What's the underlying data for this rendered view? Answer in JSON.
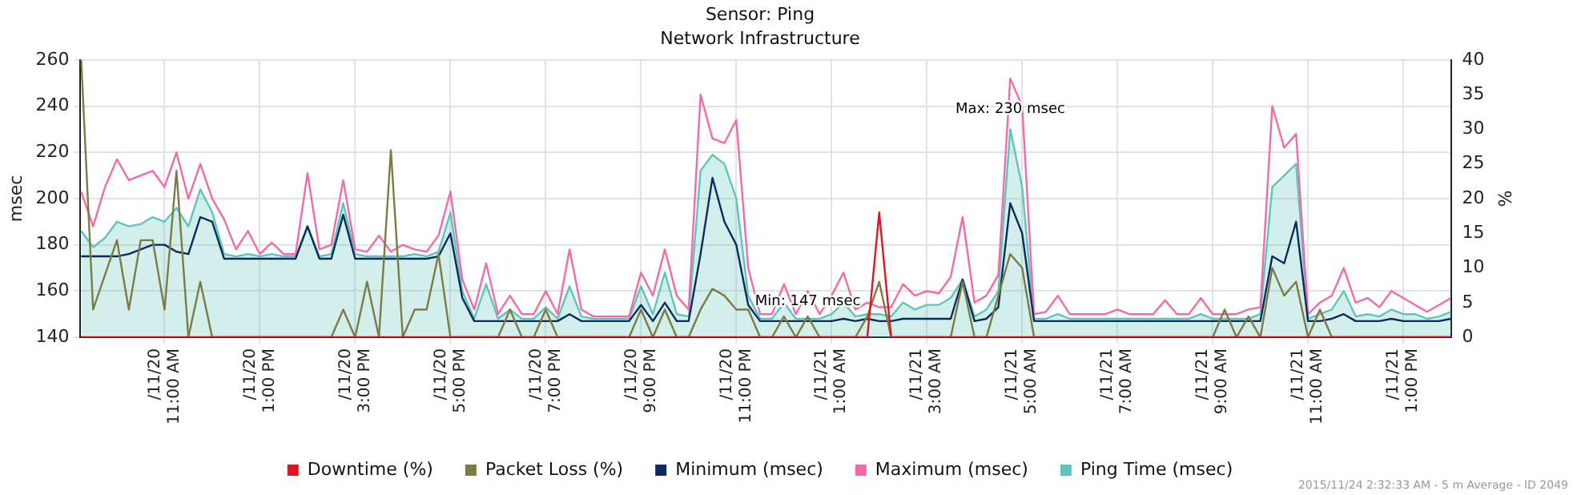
{
  "chart_data": {
    "type": "line",
    "title": "Sensor: Ping",
    "subtitle": "Network Infrastructure",
    "ylabel": "msec",
    "y2label": "%",
    "x": [
      "2015-11-20T09:15",
      "2015-11-20T09:30",
      "2015-11-20T09:45",
      "2015-11-20T10:00",
      "2015-11-20T10:15",
      "2015-11-20T10:30",
      "2015-11-20T10:45",
      "2015-11-20T11:00",
      "2015-11-20T11:15",
      "2015-11-20T11:30",
      "2015-11-20T11:45",
      "2015-11-20T12:00",
      "2015-11-20T12:15",
      "2015-11-20T12:30",
      "2015-11-20T12:45",
      "2015-11-20T13:00",
      "2015-11-20T13:15",
      "2015-11-20T13:30",
      "2015-11-20T13:45",
      "2015-11-20T14:00",
      "2015-11-20T14:15",
      "2015-11-20T14:30",
      "2015-11-20T14:45",
      "2015-11-20T15:00",
      "2015-11-20T15:15",
      "2015-11-20T15:30",
      "2015-11-20T15:45",
      "2015-11-20T16:00",
      "2015-11-20T16:15",
      "2015-11-20T16:30",
      "2015-11-20T16:45",
      "2015-11-20T17:00",
      "2015-11-20T17:15",
      "2015-11-20T17:30",
      "2015-11-20T17:45",
      "2015-11-20T18:00",
      "2015-11-20T18:15",
      "2015-11-20T18:30",
      "2015-11-20T18:45",
      "2015-11-20T19:00",
      "2015-11-20T19:15",
      "2015-11-20T19:30",
      "2015-11-20T19:45",
      "2015-11-20T20:00",
      "2015-11-20T20:15",
      "2015-11-20T20:30",
      "2015-11-20T20:45",
      "2015-11-20T21:00",
      "2015-11-20T21:15",
      "2015-11-20T21:30",
      "2015-11-20T21:45",
      "2015-11-20T22:00",
      "2015-11-20T22:15",
      "2015-11-20T22:30",
      "2015-11-20T22:45",
      "2015-11-20T23:00",
      "2015-11-20T23:15",
      "2015-11-20T23:30",
      "2015-11-20T23:45",
      "2015-11-21T00:00",
      "2015-11-21T00:15",
      "2015-11-21T00:30",
      "2015-11-21T00:45",
      "2015-11-21T01:00",
      "2015-11-21T01:15",
      "2015-11-21T01:30",
      "2015-11-21T01:45",
      "2015-11-21T02:00",
      "2015-11-21T02:15",
      "2015-11-21T02:30",
      "2015-11-21T02:45",
      "2015-11-21T03:00",
      "2015-11-21T03:15",
      "2015-11-21T03:30",
      "2015-11-21T03:45",
      "2015-11-21T04:00",
      "2015-11-21T04:15",
      "2015-11-21T04:30",
      "2015-11-21T04:45",
      "2015-11-21T05:00",
      "2015-11-21T05:15",
      "2015-11-21T05:30",
      "2015-11-21T05:45",
      "2015-11-21T06:00",
      "2015-11-21T06:15",
      "2015-11-21T06:30",
      "2015-11-21T06:45",
      "2015-11-21T07:00",
      "2015-11-21T07:15",
      "2015-11-21T07:30",
      "2015-11-21T07:45",
      "2015-11-21T08:00",
      "2015-11-21T08:15",
      "2015-11-21T08:30",
      "2015-11-21T08:45",
      "2015-11-21T09:00",
      "2015-11-21T09:15",
      "2015-11-21T09:30",
      "2015-11-21T09:45",
      "2015-11-21T10:00",
      "2015-11-21T10:15",
      "2015-11-21T10:30",
      "2015-11-21T10:45",
      "2015-11-21T11:00",
      "2015-11-21T11:15",
      "2015-11-21T11:30",
      "2015-11-21T11:45",
      "2015-11-21T12:00",
      "2015-11-21T12:15",
      "2015-11-21T12:30",
      "2015-11-21T12:45",
      "2015-11-21T13:00",
      "2015-11-21T13:15",
      "2015-11-21T13:30",
      "2015-11-21T13:45",
      "2015-11-21T14:00"
    ],
    "series": [
      {
        "name": "Downtime (%)",
        "color": "#e0141e",
        "axis": "y2",
        "values": [
          0,
          0,
          0,
          0,
          0,
          0,
          0,
          0,
          0,
          0,
          0,
          0,
          0,
          0,
          0,
          0,
          0,
          0,
          0,
          0,
          0,
          0,
          0,
          0,
          0,
          0,
          0,
          0,
          0,
          0,
          0,
          0,
          0,
          0,
          0,
          0,
          0,
          0,
          0,
          0,
          0,
          0,
          0,
          0,
          0,
          0,
          0,
          0,
          0,
          0,
          0,
          0,
          0,
          0,
          0,
          0,
          0,
          0,
          0,
          0,
          0,
          0,
          0,
          0,
          0,
          0,
          0,
          18,
          0,
          0,
          0,
          0,
          0,
          0,
          0,
          0,
          0,
          0,
          0,
          0,
          0,
          0,
          0,
          0,
          0,
          0,
          0,
          0,
          0,
          0,
          0,
          0,
          0,
          0,
          0,
          0,
          0,
          0,
          0,
          0,
          0,
          0,
          0,
          0,
          0,
          0,
          0,
          0,
          0,
          0,
          0,
          0,
          0,
          0,
          0,
          0
        ]
      },
      {
        "name": "Packet Loss (%)",
        "color": "#7d7a45",
        "axis": "y2",
        "values": [
          40,
          4,
          9,
          14,
          4,
          14,
          14,
          4,
          24,
          0,
          8,
          0,
          0,
          0,
          0,
          0,
          0,
          0,
          0,
          0,
          0,
          0,
          4,
          0,
          8,
          0,
          27,
          0,
          4,
          4,
          12,
          0,
          0,
          0,
          0,
          0,
          4,
          0,
          0,
          4,
          0,
          0,
          0,
          0,
          0,
          0,
          0,
          4,
          0,
          4,
          0,
          0,
          4,
          7,
          6,
          4,
          4,
          0,
          0,
          3,
          0,
          3,
          0,
          0,
          0,
          0,
          3,
          8,
          0,
          0,
          0,
          0,
          0,
          0,
          8,
          0,
          0,
          6,
          12,
          10,
          0,
          0,
          0,
          0,
          0,
          0,
          0,
          0,
          0,
          0,
          0,
          0,
          0,
          0,
          0,
          0,
          4,
          0,
          3,
          0,
          10,
          6,
          8,
          0,
          4,
          0,
          0,
          0,
          0,
          0,
          0,
          0,
          0,
          0,
          0,
          0
        ]
      },
      {
        "name": "Minimum (msec)",
        "color": "#0b2a60",
        "values": [
          175,
          175,
          175,
          175,
          176,
          178,
          180,
          180,
          177,
          176,
          192,
          190,
          174,
          174,
          174,
          174,
          174,
          174,
          174,
          188,
          174,
          174,
          193,
          174,
          174,
          174,
          174,
          174,
          174,
          174,
          175,
          185,
          157,
          147,
          147,
          147,
          147,
          147,
          147,
          147,
          147,
          150,
          147,
          147,
          147,
          147,
          147,
          154,
          147,
          155,
          147,
          147,
          176,
          209,
          190,
          180,
          154,
          147,
          147,
          147,
          147,
          147,
          147,
          147,
          148,
          147,
          148,
          147,
          147,
          148,
          148,
          148,
          148,
          148,
          165,
          147,
          148,
          153,
          198,
          185,
          147,
          147,
          147,
          147,
          147,
          147,
          147,
          147,
          147,
          147,
          147,
          147,
          147,
          147,
          147,
          147,
          147,
          147,
          147,
          147,
          175,
          172,
          190,
          147,
          147,
          148,
          150,
          147,
          147,
          147,
          148,
          147,
          147,
          147,
          147,
          148
        ]
      },
      {
        "name": "Maximum (msec)",
        "color": "#f26aa8",
        "values": [
          203,
          188,
          205,
          217,
          208,
          210,
          212,
          205,
          220,
          200,
          215,
          200,
          191,
          178,
          186,
          176,
          181,
          176,
          176,
          211,
          178,
          180,
          208,
          178,
          177,
          184,
          177,
          180,
          178,
          177,
          184,
          203,
          165,
          152,
          172,
          150,
          158,
          150,
          150,
          160,
          150,
          178,
          152,
          149,
          149,
          149,
          149,
          168,
          158,
          178,
          158,
          152,
          245,
          226,
          224,
          234,
          170,
          150,
          150,
          163,
          150,
          160,
          150,
          158,
          168,
          152,
          155,
          153,
          153,
          163,
          158,
          160,
          159,
          166,
          192,
          155,
          158,
          167,
          252,
          240,
          150,
          151,
          158,
          150,
          150,
          150,
          150,
          152,
          150,
          150,
          150,
          156,
          150,
          150,
          157,
          150,
          150,
          150,
          152,
          153,
          240,
          222,
          228,
          150,
          155,
          158,
          170,
          155,
          157,
          153,
          160,
          157,
          154,
          151,
          154,
          157
        ]
      },
      {
        "name": "Ping Time (msec)",
        "type": "area",
        "color": "#5ec4bc",
        "values": [
          186,
          179,
          183,
          190,
          188,
          189,
          192,
          190,
          196,
          188,
          204,
          194,
          176,
          175,
          176,
          175,
          176,
          175,
          175,
          188,
          175,
          176,
          198,
          176,
          175,
          175,
          175,
          175,
          176,
          175,
          177,
          194,
          160,
          148,
          163,
          148,
          152,
          148,
          148,
          153,
          148,
          162,
          149,
          148,
          148,
          148,
          148,
          162,
          150,
          168,
          150,
          149,
          212,
          219,
          215,
          200,
          158,
          148,
          148,
          155,
          148,
          148,
          148,
          150,
          155,
          149,
          150,
          150,
          149,
          155,
          152,
          154,
          154,
          157,
          165,
          149,
          152,
          160,
          230,
          205,
          148,
          148,
          150,
          148,
          148,
          148,
          148,
          148,
          148,
          148,
          148,
          148,
          148,
          148,
          150,
          148,
          148,
          148,
          148,
          150,
          205,
          210,
          215,
          148,
          150,
          152,
          160,
          149,
          150,
          149,
          152,
          150,
          150,
          148,
          149,
          151
        ]
      }
    ],
    "xlim": [
      "2015-11-20T09:14",
      "2015-11-21T14:00"
    ],
    "xticks": [
      {
        "value": "2015-11-20T11:00",
        "label": "/11/20 11:00 AM"
      },
      {
        "value": "2015-11-20T13:00",
        "label": "/11/20 1:00 PM"
      },
      {
        "value": "2015-11-20T15:00",
        "label": "/11/20 3:00 PM"
      },
      {
        "value": "2015-11-20T17:00",
        "label": "/11/20 5:00 PM"
      },
      {
        "value": "2015-11-20T19:00",
        "label": "/11/20 7:00 PM"
      },
      {
        "value": "2015-11-20T21:00",
        "label": "/11/20 9:00 PM"
      },
      {
        "value": "2015-11-20T23:00",
        "label": "/11/20 11:00 PM"
      },
      {
        "value": "2015-11-21T01:00",
        "label": "/11/21 1:00 AM"
      },
      {
        "value": "2015-11-21T03:00",
        "label": "/11/21 3:00 AM"
      },
      {
        "value": "2015-11-21T05:00",
        "label": "/11/21 5:00 AM"
      },
      {
        "value": "2015-11-21T07:00",
        "label": "/11/21 7:00 AM"
      },
      {
        "value": "2015-11-21T09:00",
        "label": "/11/21 9:00 AM"
      },
      {
        "value": "2015-11-21T11:00",
        "label": "/11/21 11:00 AM"
      },
      {
        "value": "2015-11-21T13:00",
        "label": "/11/21 1:00 PM"
      }
    ],
    "ylim": [
      140,
      260
    ],
    "yticks": [
      140,
      160,
      180,
      200,
      220,
      240,
      260
    ],
    "y2lim": [
      0,
      40
    ],
    "y2ticks": [
      0,
      5,
      10,
      15,
      20,
      25,
      30,
      35,
      40
    ],
    "grid": true,
    "legend": "bottom",
    "marker": "none",
    "line_style": "solid",
    "annotations": [
      {
        "text": "Max: 230 msec",
        "x": "2015-11-21T04:45",
        "y": 230
      },
      {
        "text": "Min: 147 msec",
        "x": "2015-11-21T00:30",
        "y": 147
      },
      "2015/11/24 2:32:33 AM - 5 m Average - ID 2049"
    ]
  }
}
